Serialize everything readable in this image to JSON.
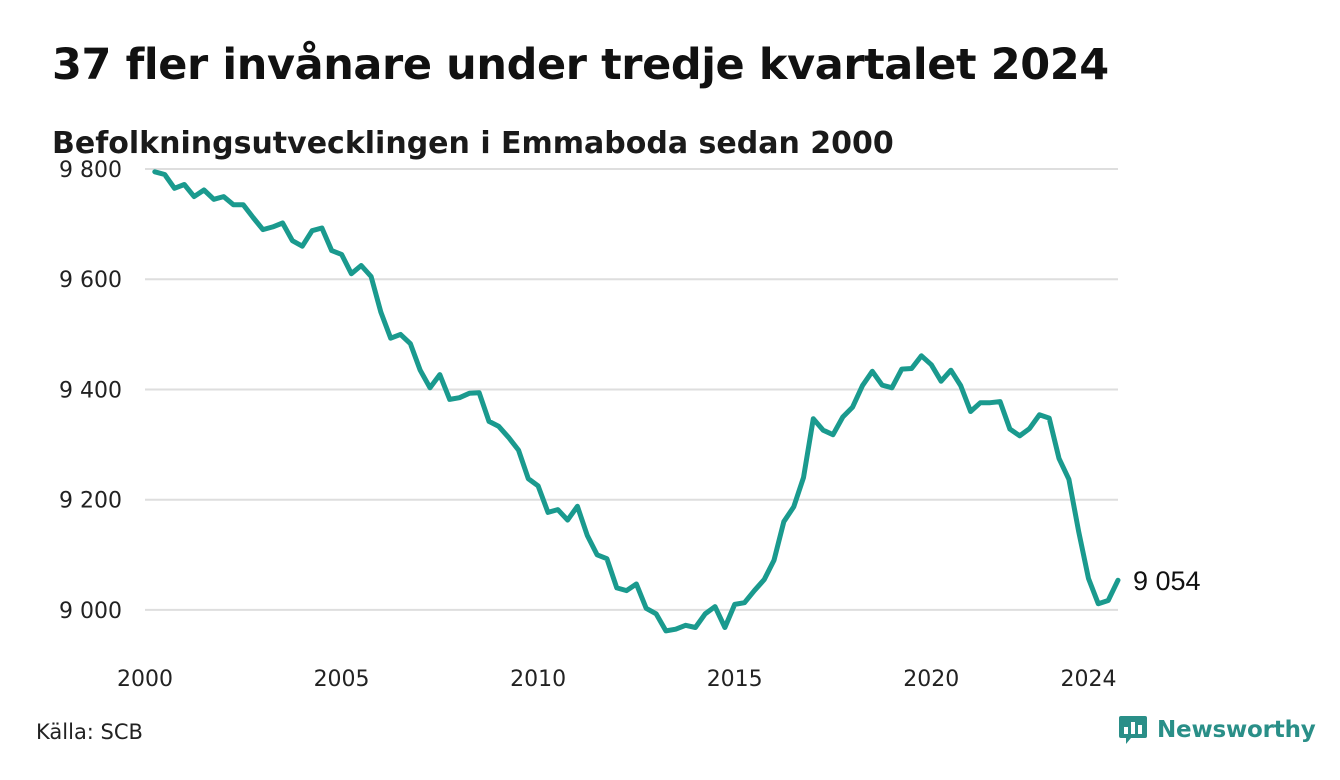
{
  "header": {
    "title": "37 fler invånare under tredje kvartalet 2024",
    "subtitle": "Befolkningsutvecklingen i Emmaboda sedan 2000"
  },
  "footer": {
    "source": "Källa: SCB",
    "brand": "Newsworthy",
    "brand_icon": "chart-bubble-icon"
  },
  "colors": {
    "line": "#1a9a8e",
    "grid": "#dedede",
    "brand": "#2a8f88"
  },
  "chart_data": {
    "type": "line",
    "title": "37 fler invånare under tredje kvartalet 2024",
    "subtitle": "Befolkningsutvecklingen i Emmaboda sedan 2000",
    "xlabel": "",
    "ylabel": "",
    "xlim": [
      2000,
      2024.75
    ],
    "ylim": [
      8920,
      9820
    ],
    "x_ticks": [
      2000,
      2005,
      2010,
      2015,
      2020,
      2024
    ],
    "x_tick_labels": [
      "2000",
      "2005",
      "2010",
      "2015",
      "2020",
      "2024"
    ],
    "y_ticks": [
      9000,
      9200,
      9400,
      9600,
      9800
    ],
    "y_tick_labels": [
      "9 000",
      "9 200",
      "9 400",
      "9 600",
      "9 800"
    ],
    "grid": "horizontal",
    "end_label": "9 054",
    "series": [
      {
        "x": [
          2000.25,
          2000.5,
          2000.75,
          2001.0,
          2001.25,
          2001.5,
          2001.75,
          2002.0,
          2002.25,
          2002.5,
          2002.75,
          2003.0,
          2003.25,
          2003.5,
          2003.75,
          2004.0,
          2004.25,
          2004.5,
          2004.75,
          2005.0,
          2005.25,
          2005.5,
          2005.75,
          2006.0,
          2006.25,
          2006.5,
          2006.75,
          2007.0,
          2007.25,
          2007.5,
          2007.75,
          2008.0,
          2008.25,
          2008.5,
          2008.75,
          2009.0,
          2009.25,
          2009.5,
          2009.75,
          2010.0,
          2010.25,
          2010.5,
          2010.75,
          2011.0,
          2011.25,
          2011.5,
          2011.75,
          2012.0,
          2012.25,
          2012.5,
          2012.75,
          2013.0,
          2013.25,
          2013.5,
          2013.75,
          2014.0,
          2014.25,
          2014.5,
          2014.75,
          2015.0,
          2015.25,
          2015.5,
          2015.75,
          2016.0,
          2016.25,
          2016.5,
          2016.75,
          2017.0,
          2017.25,
          2017.5,
          2017.75,
          2018.0,
          2018.25,
          2018.5,
          2018.75,
          2019.0,
          2019.25,
          2019.5,
          2019.75,
          2020.0,
          2020.25,
          2020.5,
          2020.75,
          2021.0,
          2021.25,
          2021.5,
          2021.75,
          2022.0,
          2022.25,
          2022.5,
          2022.75,
          2023.0,
          2023.25,
          2023.5,
          2023.75,
          2024.0,
          2024.25,
          2024.5,
          2024.75
        ],
        "y": [
          9795,
          9790,
          9765,
          9772,
          9750,
          9762,
          9745,
          9750,
          9735,
          9735,
          9712,
          9690,
          9695,
          9702,
          9670,
          9660,
          9688,
          9693,
          9652,
          9645,
          9610,
          9625,
          9605,
          9540,
          9493,
          9500,
          9483,
          9435,
          9403,
          9427,
          9382,
          9385,
          9393,
          9394,
          9342,
          9333,
          9313,
          9290,
          9238,
          9225,
          9177,
          9182,
          9163,
          9188,
          9135,
          9100,
          9093,
          9040,
          9035,
          9047,
          9003,
          8993,
          8962,
          8965,
          8972,
          8968,
          8993,
          9006,
          8968,
          9010,
          9013,
          9035,
          9055,
          9090,
          9160,
          9187,
          9240,
          9347,
          9326,
          9318,
          9350,
          9368,
          9407,
          9433,
          9408,
          9403,
          9437,
          9438,
          9461,
          9445,
          9415,
          9435,
          9407,
          9360,
          9376,
          9376,
          9378,
          9328,
          9316,
          9329,
          9354,
          9348,
          9275,
          9237,
          9142,
          9057,
          9011,
          9017,
          9054
        ]
      }
    ]
  }
}
